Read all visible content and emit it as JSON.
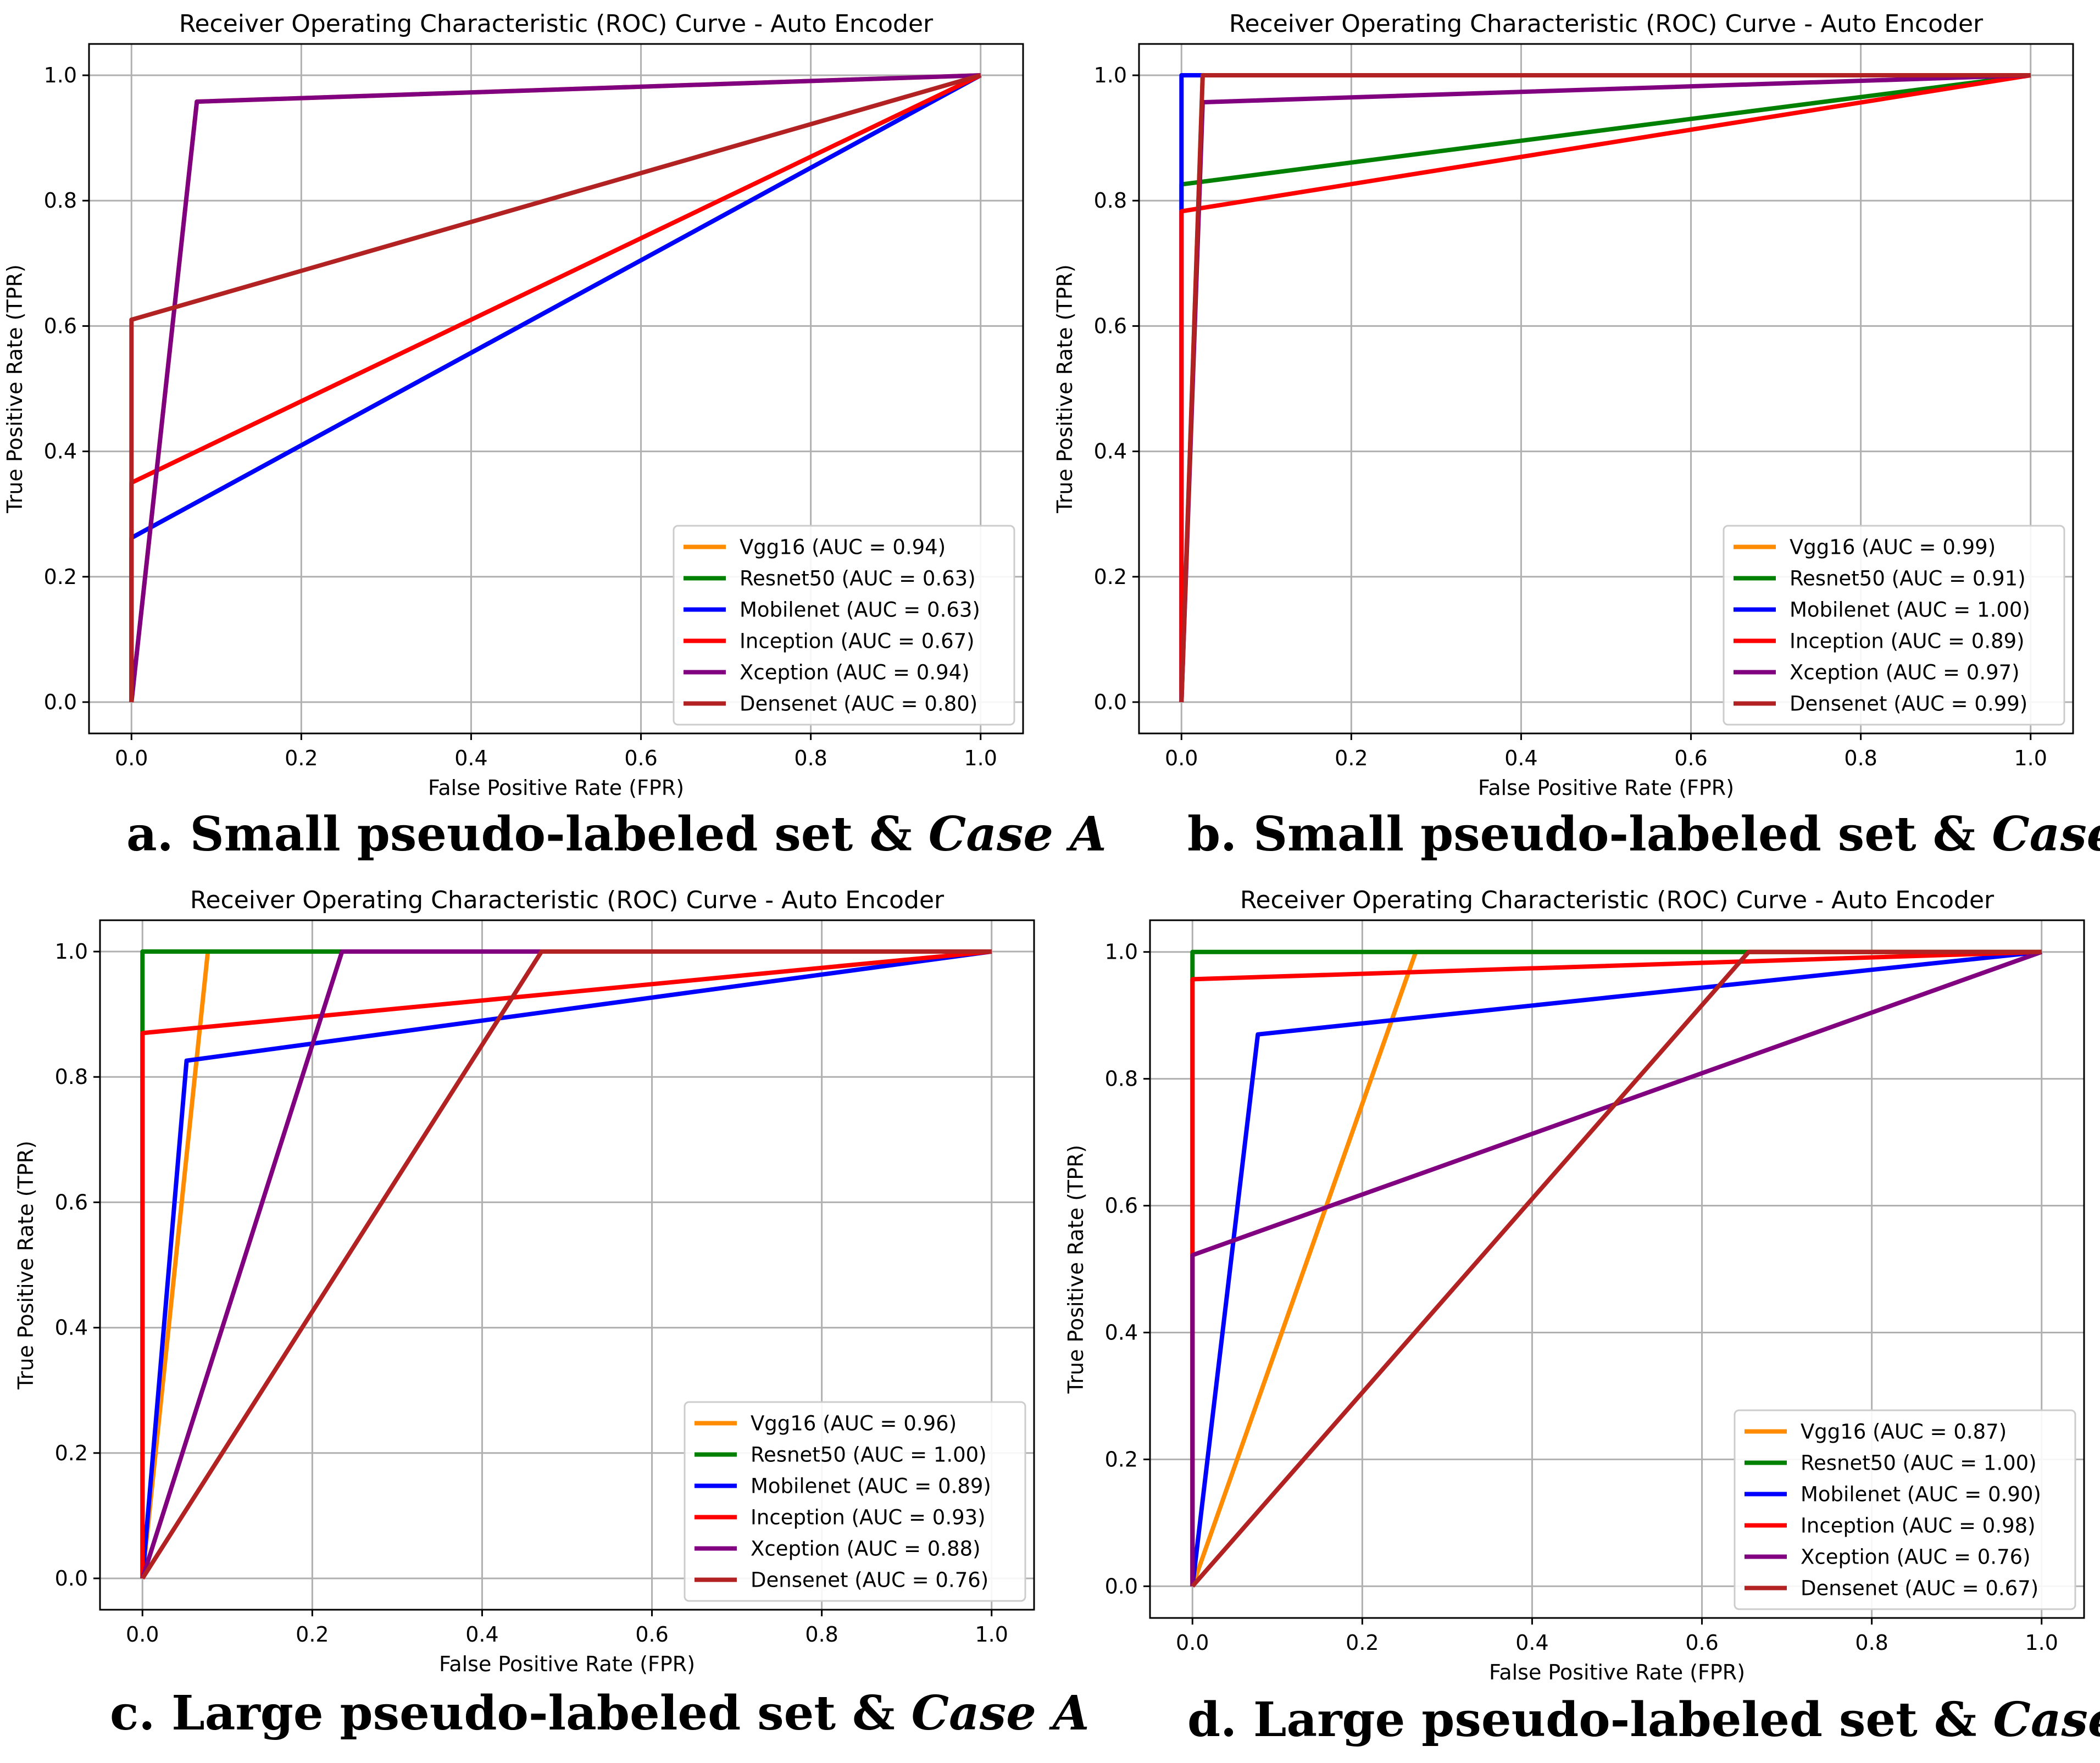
{
  "captions": [
    {
      "prefix": "a. Small  pseudo-labeled set & ",
      "case": "Case A"
    },
    {
      "prefix": "b. Small  pseudo-labeled set & ",
      "case": "Case B"
    },
    {
      "prefix": "c. Large pseudo-labeled set & ",
      "case": "Case A"
    },
    {
      "prefix": "d. Large pseudo-labeled set & ",
      "case": "Case B"
    }
  ],
  "chart_data": [
    {
      "type": "line",
      "title": "Receiver Operating Characteristic (ROC) Curve - Auto Encoder",
      "xlabel": "False Positive Rate (FPR)",
      "ylabel": "True Positive Rate (TPR)",
      "xlim": [
        -0.05,
        1.05
      ],
      "ylim": [
        -0.05,
        1.05
      ],
      "xticks": [
        "0.0",
        "0.2",
        "0.4",
        "0.6",
        "0.8",
        "1.0"
      ],
      "yticks": [
        "0.0",
        "0.2",
        "0.4",
        "0.6",
        "0.8",
        "1.0"
      ],
      "grid": true,
      "legend_position": "lower-right",
      "series": [
        {
          "name": "Vgg16 (AUC = 0.94)",
          "color": "#ff8c00",
          "x": [
            0,
            0.077,
            1
          ],
          "y": [
            0,
            0.958,
            1
          ]
        },
        {
          "name": "Resnet50 (AUC = 0.63)",
          "color": "#008000",
          "x": [
            0,
            0,
            1
          ],
          "y": [
            0,
            0.262,
            1
          ]
        },
        {
          "name": "Mobilenet (AUC = 0.63)",
          "color": "#0000ff",
          "x": [
            0,
            0,
            1
          ],
          "y": [
            0,
            0.262,
            1
          ]
        },
        {
          "name": "Inception (AUC = 0.67)",
          "color": "#ff0000",
          "x": [
            0,
            0,
            1
          ],
          "y": [
            0,
            0.35,
            1
          ]
        },
        {
          "name": "Xception (AUC = 0.94)",
          "color": "#800080",
          "x": [
            0,
            0.077,
            1
          ],
          "y": [
            0,
            0.958,
            1
          ]
        },
        {
          "name": "Densenet (AUC = 0.80)",
          "color": "#b22222",
          "x": [
            0,
            0,
            1
          ],
          "y": [
            0,
            0.61,
            1
          ]
        }
      ]
    },
    {
      "type": "line",
      "title": "Receiver Operating Characteristic (ROC) Curve - Auto Encoder",
      "xlabel": "False Positive Rate (FPR)",
      "ylabel": "True Positive Rate (TPR)",
      "xlim": [
        -0.05,
        1.05
      ],
      "ylim": [
        -0.05,
        1.05
      ],
      "xticks": [
        "0.0",
        "0.2",
        "0.4",
        "0.6",
        "0.8",
        "1.0"
      ],
      "yticks": [
        "0.0",
        "0.2",
        "0.4",
        "0.6",
        "0.8",
        "1.0"
      ],
      "grid": true,
      "legend_position": "lower-right",
      "series": [
        {
          "name": "Vgg16 (AUC = 0.99)",
          "color": "#ff8c00",
          "x": [
            0,
            0.025,
            1
          ],
          "y": [
            0,
            1,
            1
          ]
        },
        {
          "name": "Resnet50 (AUC = 0.91)",
          "color": "#008000",
          "x": [
            0,
            0,
            1
          ],
          "y": [
            0,
            0.826,
            1
          ]
        },
        {
          "name": "Mobilenet (AUC = 1.00)",
          "color": "#0000ff",
          "x": [
            0,
            0,
            1
          ],
          "y": [
            0,
            1,
            1
          ]
        },
        {
          "name": "Inception (AUC = 0.89)",
          "color": "#ff0000",
          "x": [
            0,
            0,
            1
          ],
          "y": [
            0,
            0.783,
            1
          ]
        },
        {
          "name": "Xception (AUC = 0.97)",
          "color": "#800080",
          "x": [
            0,
            0.025,
            1
          ],
          "y": [
            0,
            0.957,
            1
          ]
        },
        {
          "name": "Densenet (AUC = 0.99)",
          "color": "#b22222",
          "x": [
            0,
            0.025,
            1
          ],
          "y": [
            0,
            1,
            1
          ]
        }
      ]
    },
    {
      "type": "line",
      "title": "Receiver Operating Characteristic (ROC) Curve - Auto Encoder",
      "xlabel": "False Positive Rate (FPR)",
      "ylabel": "True Positive Rate (TPR)",
      "xlim": [
        -0.05,
        1.05
      ],
      "ylim": [
        -0.05,
        1.05
      ],
      "xticks": [
        "0.0",
        "0.2",
        "0.4",
        "0.6",
        "0.8",
        "1.0"
      ],
      "yticks": [
        "0.0",
        "0.2",
        "0.4",
        "0.6",
        "0.8",
        "1.0"
      ],
      "grid": true,
      "legend_position": "lower-right",
      "series": [
        {
          "name": "Vgg16 (AUC = 0.96)",
          "color": "#ff8c00",
          "x": [
            0,
            0.077,
            1
          ],
          "y": [
            0,
            1,
            1
          ]
        },
        {
          "name": "Resnet50 (AUC = 1.00)",
          "color": "#008000",
          "x": [
            0,
            0,
            1
          ],
          "y": [
            0,
            1,
            1
          ]
        },
        {
          "name": "Mobilenet (AUC = 0.89)",
          "color": "#0000ff",
          "x": [
            0,
            0.052,
            1
          ],
          "y": [
            0,
            0.826,
            1
          ]
        },
        {
          "name": "Inception (AUC = 0.93)",
          "color": "#ff0000",
          "x": [
            0,
            0,
            1
          ],
          "y": [
            0,
            0.87,
            1
          ]
        },
        {
          "name": "Xception (AUC = 0.88)",
          "color": "#800080",
          "x": [
            0,
            0.235,
            1
          ],
          "y": [
            0,
            1,
            1
          ]
        },
        {
          "name": "Densenet (AUC = 0.76)",
          "color": "#b22222",
          "x": [
            0,
            0.47,
            1
          ],
          "y": [
            0,
            1,
            1
          ]
        }
      ]
    },
    {
      "type": "line",
      "title": "Receiver Operating Characteristic (ROC) Curve - Auto Encoder",
      "xlabel": "False Positive Rate (FPR)",
      "ylabel": "True Positive Rate (TPR)",
      "xlim": [
        -0.05,
        1.05
      ],
      "ylim": [
        -0.05,
        1.05
      ],
      "xticks": [
        "0.0",
        "0.2",
        "0.4",
        "0.6",
        "0.8",
        "1.0"
      ],
      "yticks": [
        "0.0",
        "0.2",
        "0.4",
        "0.6",
        "0.8",
        "1.0"
      ],
      "grid": true,
      "legend_position": "lower-right",
      "series": [
        {
          "name": "Vgg16 (AUC = 0.87)",
          "color": "#ff8c00",
          "x": [
            0,
            0.263,
            1
          ],
          "y": [
            0,
            1,
            1
          ]
        },
        {
          "name": "Resnet50 (AUC = 1.00)",
          "color": "#008000",
          "x": [
            0,
            0,
            1
          ],
          "y": [
            0,
            1,
            1
          ]
        },
        {
          "name": "Mobilenet (AUC = 0.90)",
          "color": "#0000ff",
          "x": [
            0,
            0.077,
            1
          ],
          "y": [
            0,
            0.87,
            1
          ]
        },
        {
          "name": "Inception (AUC = 0.98)",
          "color": "#ff0000",
          "x": [
            0,
            0,
            1
          ],
          "y": [
            0,
            0.957,
            1
          ]
        },
        {
          "name": "Xception (AUC = 0.76)",
          "color": "#800080",
          "x": [
            0,
            0,
            1
          ],
          "y": [
            0,
            0.522,
            1
          ]
        },
        {
          "name": "Densenet (AUC = 0.67)",
          "color": "#b22222",
          "x": [
            0,
            0.655,
            1
          ],
          "y": [
            0,
            1,
            1
          ]
        }
      ]
    }
  ]
}
